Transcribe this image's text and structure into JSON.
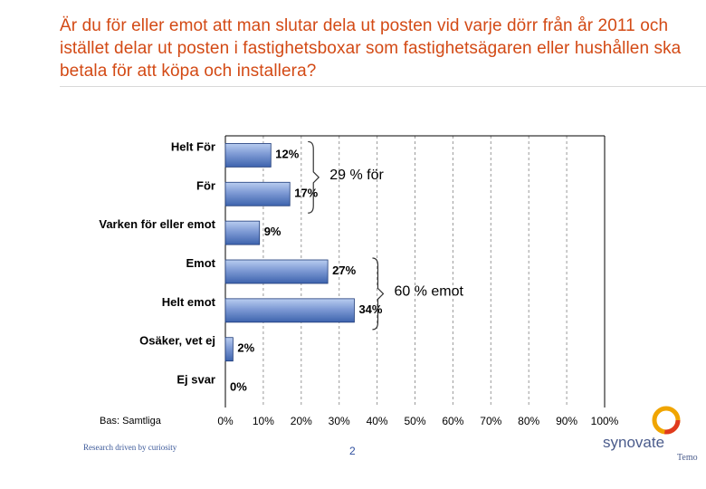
{
  "slide": {
    "title": "Är du för eller emot att man slutar dela ut posten vid varje dörr från år 2011 och istället delar ut posten i fastighetsboxar som fastighetsägaren eller hushållen ska betala för att köpa och installera?",
    "footnote": "Bas: Samtliga",
    "tagline": "Research driven by curiosity",
    "page_number": "2",
    "logo_text": "synovate",
    "logo_subtext": "Temo"
  },
  "colors": {
    "title": "#d34a15",
    "bar_light": "#b9cdf0",
    "bar_dark": "#3d63ad",
    "logo_ring": "#f0a500",
    "logo_text": "#4b5c8c"
  },
  "chart_data": {
    "type": "bar",
    "orientation": "horizontal",
    "categories": [
      "Helt För",
      "För",
      "Varken för eller emot",
      "Emot",
      "Helt emot",
      "Osäker, vet ej",
      "Ej svar"
    ],
    "values": [
      12,
      17,
      9,
      27,
      34,
      2,
      0
    ],
    "value_labels": [
      "12%",
      "17%",
      "9%",
      "27%",
      "34%",
      "2%",
      "0%"
    ],
    "xlim": [
      0,
      100
    ],
    "x_ticks": [
      "0%",
      "10%",
      "20%",
      "30%",
      "40%",
      "50%",
      "60%",
      "70%",
      "80%",
      "90%",
      "100%"
    ],
    "grid": "vertical dashed",
    "annotations": [
      {
        "text": "29 % för",
        "brackets": [
          "Helt För",
          "För"
        ]
      },
      {
        "text": "60 % emot",
        "brackets": [
          "Emot",
          "Helt emot"
        ]
      }
    ]
  }
}
